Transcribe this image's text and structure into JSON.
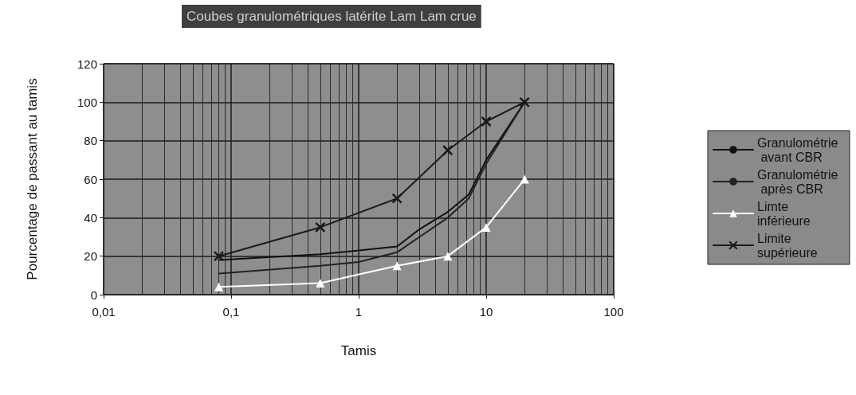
{
  "chart_data": {
    "type": "line",
    "title": "Coubes granulométriques latérite Lam Lam crue",
    "xlabel": "Tamis",
    "ylabel": "Pourcentage de passant au tamis",
    "log": "x",
    "xlim": [
      0.01,
      100
    ],
    "xticks": [
      {
        "value": 0.01,
        "label": "0,01"
      },
      {
        "value": 0.1,
        "label": "0,1"
      },
      1,
      10,
      100
    ],
    "ylim": [
      0,
      120
    ],
    "yticks": [
      0,
      20,
      40,
      60,
      80,
      100,
      120
    ],
    "grid": true,
    "legend": "right",
    "line_style": "solid",
    "series": [
      {
        "name": "Granulométrie avant CBR",
        "color": "#111111",
        "marker": "none",
        "x": [
          0.08,
          0.5,
          1,
          2,
          3,
          5,
          7.3,
          10,
          20
        ],
        "values": [
          18,
          21,
          23,
          25,
          34,
          43,
          52,
          70,
          100
        ]
      },
      {
        "name": "Granulométrie après CBR",
        "color": "#222222",
        "marker": "none",
        "x": [
          0.08,
          0.5,
          1,
          2,
          3,
          5,
          7.3,
          10,
          20
        ],
        "values": [
          11,
          15,
          17,
          22,
          30,
          40,
          50,
          68,
          100
        ]
      },
      {
        "name": "Limte inférieure",
        "color": "#ffffff",
        "marker": "triangle",
        "x": [
          0.08,
          0.5,
          2,
          5,
          10,
          20
        ],
        "values": [
          4,
          6,
          15,
          20,
          35,
          60
        ]
      },
      {
        "name": "Limite supérieure",
        "color": "#1a1a1a",
        "marker": "cross",
        "x": [
          0.08,
          0.5,
          2,
          5,
          10,
          20
        ],
        "values": [
          20,
          35,
          50,
          75,
          90,
          100
        ]
      }
    ]
  }
}
